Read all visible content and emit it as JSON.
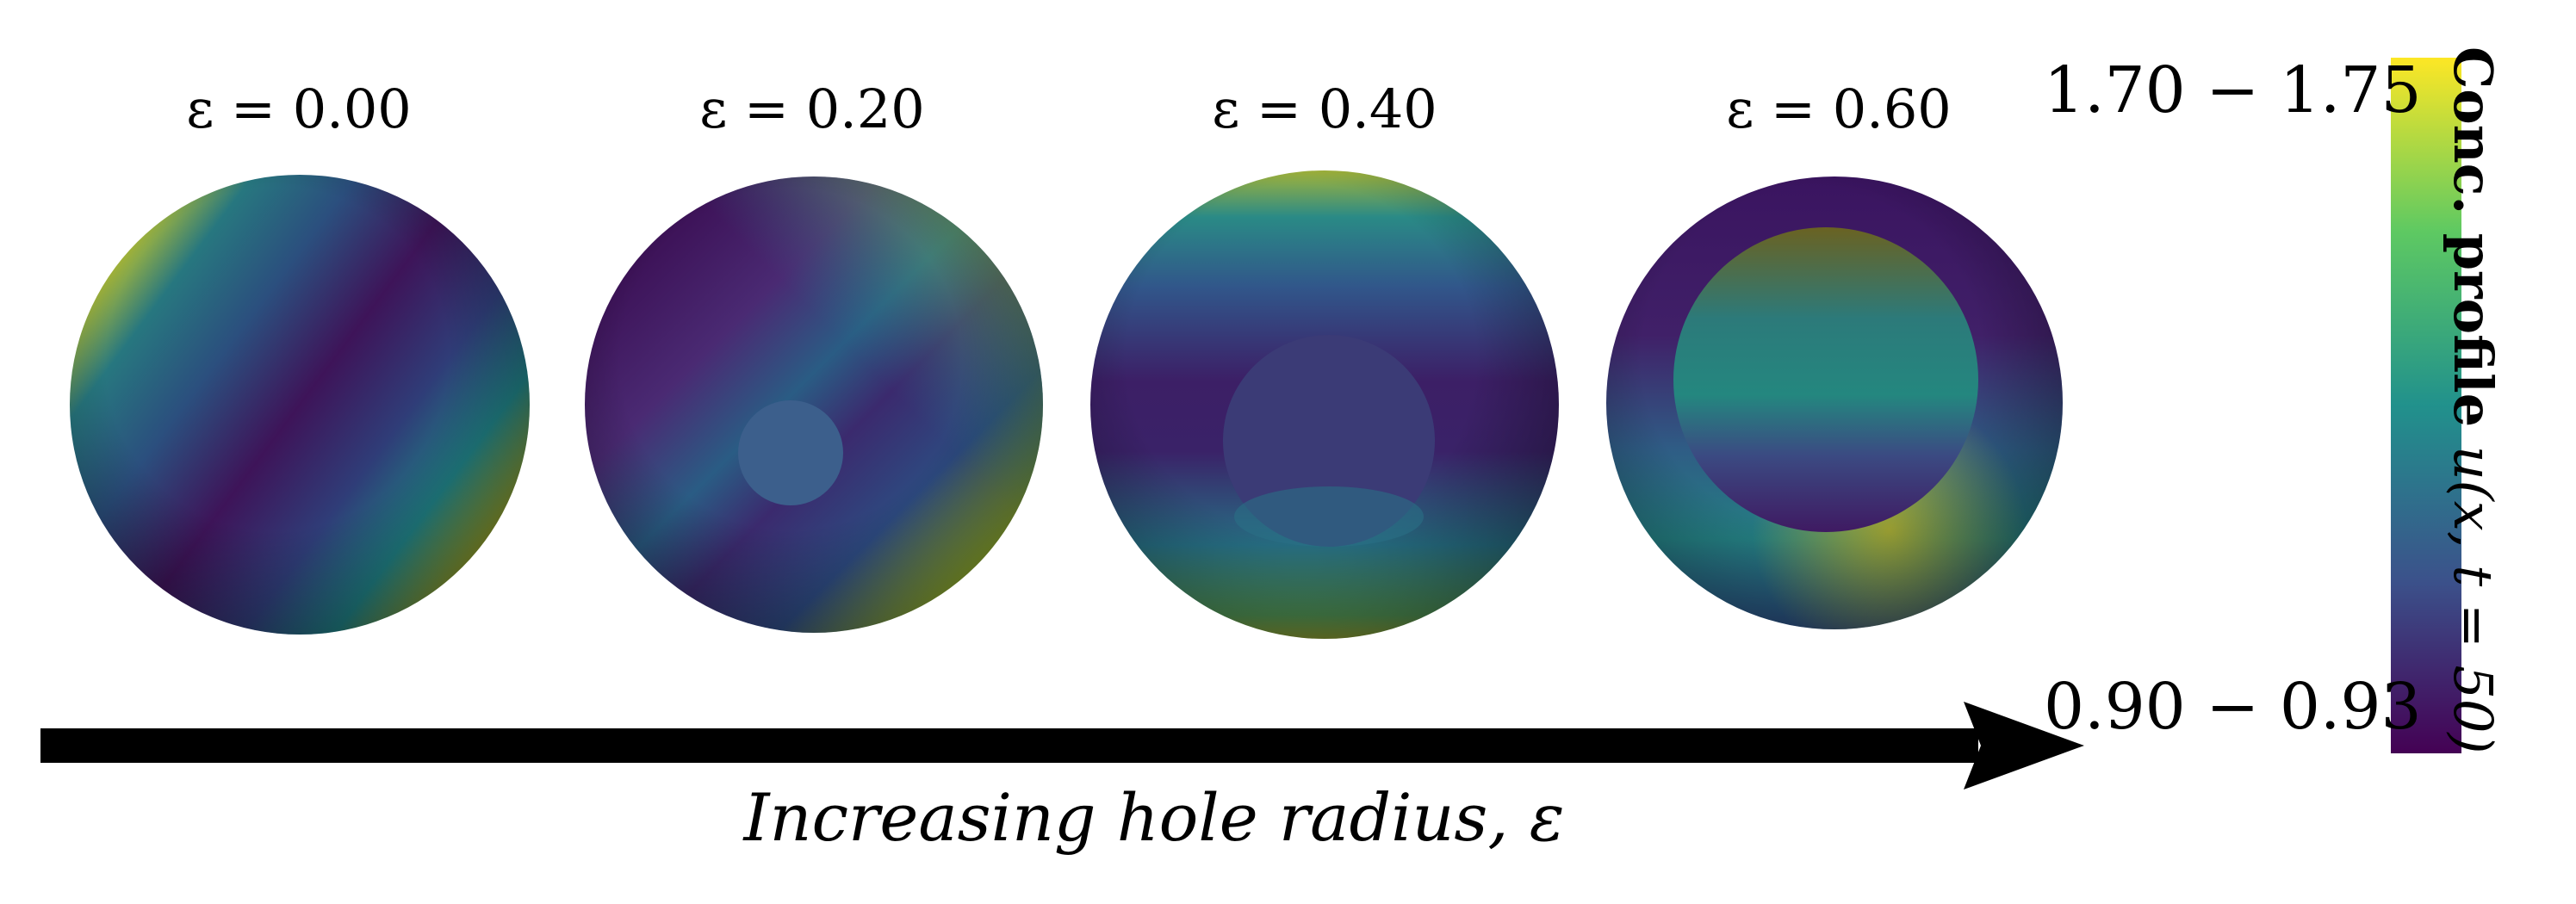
{
  "panels": [
    {
      "label": "ε = 0.00",
      "epsilon": 0.0
    },
    {
      "label": "ε = 0.20",
      "epsilon": 0.2
    },
    {
      "label": "ε = 0.40",
      "epsilon": 0.4
    },
    {
      "label": "ε = 0.60",
      "epsilon": 0.6
    }
  ],
  "colorbar": {
    "max_label": "1.70 − 1.75",
    "min_label": "0.90 − 0.93",
    "title_bold": "Conc. profile ",
    "title_math": "u(x, t = 50)",
    "colormap": "viridis",
    "colors": [
      "#440154",
      "#3b528b",
      "#21918c",
      "#5ec962",
      "#fde725"
    ]
  },
  "arrow": {
    "caption": "Increasing hole radius, ε"
  }
}
